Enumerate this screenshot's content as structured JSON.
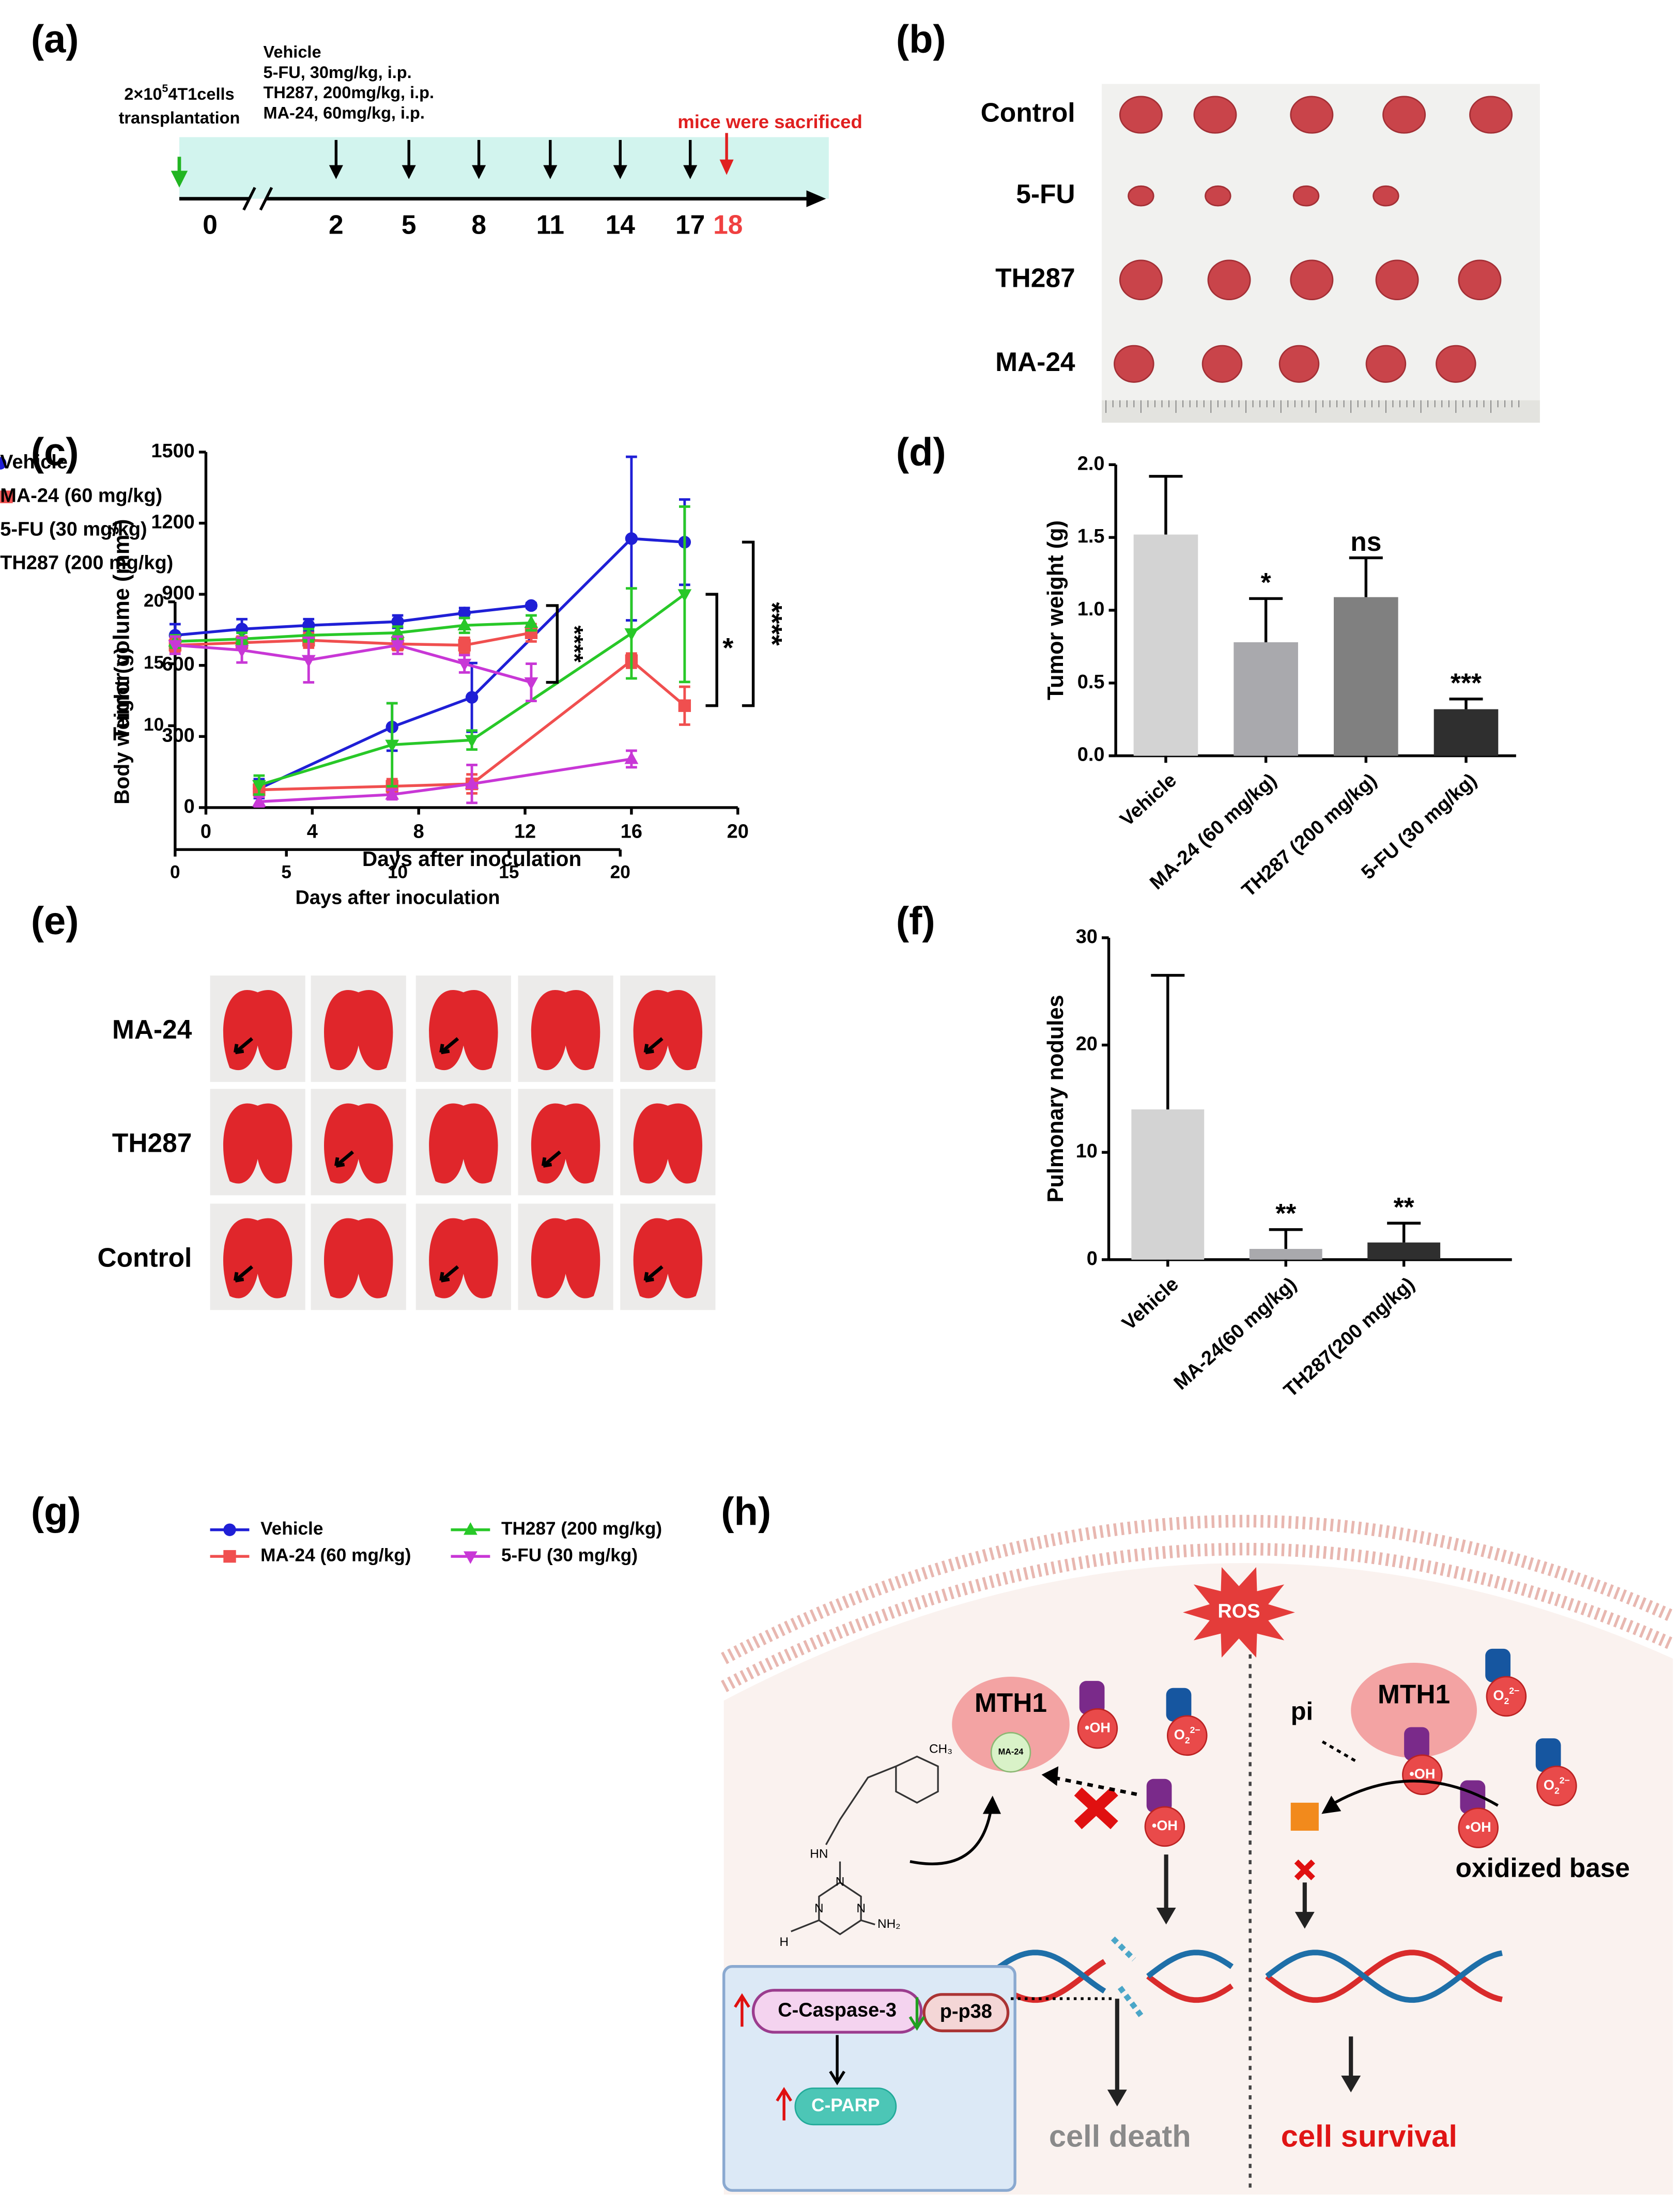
{
  "panel_labels": [
    "(a)",
    "(b)",
    "(c)",
    "(d)",
    "(e)",
    "(f)",
    "(g)",
    "(h)"
  ],
  "timeline": {
    "cells_prefix": "2×10",
    "cells_sup": "5",
    "cells_suffix": "4T1cells",
    "cells_line2": "transplantation",
    "treatments": [
      "Vehicle",
      "5-FU, 30mg/kg, i.p.",
      "TH287, 200mg/kg, i.p.",
      "MA-24, 60mg/kg, i.p."
    ],
    "sacrifice": "mice were sacrificed",
    "days": [
      0,
      2,
      5,
      8,
      11,
      14,
      17
    ],
    "end_day": 18
  },
  "photo_b": {
    "groups": [
      "Control",
      "5-FU",
      "TH287",
      "MA-24"
    ]
  },
  "photo_e": {
    "groups": [
      "MA-24",
      "TH287",
      "Control"
    ]
  },
  "diagram": {
    "ros": "ROS",
    "mth1": "MTH1",
    "inhibitor": "MA-24",
    "hydroxyl": "•OH",
    "superoxide": {
      "base": "O",
      "sub": "2",
      "sup": "2−"
    },
    "pi": "pi",
    "oxidized_base": "oxidized base",
    "caspase": "C-Caspase-3",
    "p38": "p-p38",
    "parp": "C-PARP",
    "death": "cell death",
    "survival": "cell survival",
    "chem_labels": [
      "CH₃",
      "HN",
      "N",
      "N",
      "N",
      "H",
      "NH₂"
    ]
  },
  "chart_data": [
    {
      "type": "line",
      "y_label": {
        "text": "Tumor volume (mm",
        "sup": "3",
        "end": ")"
      },
      "x_label": "Days after inoculation",
      "xlim": [
        0,
        20
      ],
      "xticks": [
        0,
        4,
        8,
        12,
        16,
        20
      ],
      "ylim": [
        0,
        1500
      ],
      "yticks": [
        0,
        300,
        600,
        900,
        1200,
        1500
      ],
      "series": [
        {
          "name": "Vehicle",
          "color": "#1f1fd6",
          "marker": "circle",
          "x": [
            2,
            7,
            10,
            16,
            18
          ],
          "values": [
            80,
            340,
            465,
            1135,
            1120
          ],
          "errors": [
            40,
            100,
            145,
            345,
            180
          ]
        },
        {
          "name": "MA-24 (60 mg/kg)",
          "color": "#f04f4f",
          "marker": "square",
          "x": [
            2,
            7,
            10,
            16,
            18
          ],
          "values": [
            75,
            90,
            100,
            620,
            430
          ],
          "errors": [
            30,
            30,
            40,
            30,
            80
          ]
        },
        {
          "name": "5-FU (30 mg/kg)",
          "color": "#c837d6",
          "marker": "triangle",
          "x": [
            2,
            7,
            10,
            16
          ],
          "values": [
            25,
            55,
            100,
            205
          ],
          "errors": [
            20,
            20,
            80,
            35
          ]
        },
        {
          "name": "TH287 (200 mg/kg)",
          "color": "#28c828",
          "marker": "triangle-down",
          "x": [
            2,
            7,
            10,
            16,
            18
          ],
          "values": [
            95,
            265,
            285,
            735,
            900
          ],
          "errors": [
            40,
            175,
            40,
            190,
            370
          ]
        }
      ],
      "annotations": [
        "*",
        "****"
      ]
    },
    {
      "type": "bar",
      "y_label": {
        "text": "Tumor weight (g)"
      },
      "categories": [
        "Vehicle",
        "MA-24 (60 mg/kg)",
        "TH287 (200 mg/kg)",
        "5-FU (30 mg/kg)"
      ],
      "values": [
        1.52,
        0.78,
        1.09,
        0.32
      ],
      "errors": [
        0.4,
        0.3,
        0.27,
        0.07
      ],
      "colors": [
        "#d3d3d3",
        "#a9a9ad",
        "#808080",
        "#2f2f2f"
      ],
      "value_annotations": [
        null,
        "*",
        "ns",
        "***"
      ],
      "ylim": [
        0,
        2
      ],
      "yticks": [
        {
          "value": 0,
          "label": "0.0"
        },
        0.5,
        {
          "value": 1,
          "label": "1.0"
        },
        1.5,
        {
          "value": 2,
          "label": "2.0"
        }
      ]
    },
    {
      "type": "bar",
      "y_label": {
        "text": "Pulmonary nodules"
      },
      "categories": [
        "Vehicle",
        "MA-24(60 mg/kg)",
        "TH287(200 mg/kg)"
      ],
      "values": [
        14,
        1,
        1.6
      ],
      "errors": [
        12.5,
        1.8,
        1.8
      ],
      "colors": [
        "#d3d3d3",
        "#a9a9ad",
        "#2f2f2f"
      ],
      "value_annotations": [
        null,
        "**",
        "**"
      ],
      "ylim": [
        0,
        30
      ],
      "yticks": [
        0,
        10,
        20,
        30
      ]
    },
    {
      "type": "line",
      "y_label": {
        "text": "Body weight (g)"
      },
      "x_label": "Days after inoculation",
      "xlim": [
        0,
        20
      ],
      "xticks": [
        0,
        5,
        10,
        15,
        20
      ],
      "ylim": [
        0,
        20
      ],
      "yticks": [
        10,
        15,
        20
      ],
      "series": [
        {
          "name": "Vehicle",
          "color": "#1f1fd6",
          "marker": "circle",
          "x": [
            0,
            3,
            6,
            10,
            13,
            16
          ],
          "values": [
            17.3,
            17.8,
            18.1,
            18.4,
            19.1,
            19.7
          ],
          "errors": [
            0.9,
            0.8,
            0.5,
            0.5,
            0.4,
            0.2
          ]
        },
        {
          "name": "MA-24 (60 mg/kg)",
          "color": "#f04f4f",
          "marker": "square",
          "x": [
            0,
            3,
            6,
            10,
            13,
            16
          ],
          "values": [
            16.5,
            16.7,
            16.9,
            16.6,
            16.5,
            17.5
          ],
          "errors": [
            0.5,
            0.5,
            0.6,
            0.5,
            0.6,
            0.7
          ]
        },
        {
          "name": "TH287 (200 mg/kg)",
          "color": "#28c828",
          "marker": "triangle",
          "x": [
            0,
            3,
            6,
            10,
            13,
            16
          ],
          "values": [
            16.8,
            17.0,
            17.3,
            17.5,
            18.1,
            18.3
          ],
          "errors": [
            0.5,
            0.5,
            0.5,
            0.5,
            0.6,
            0.6
          ]
        },
        {
          "name": "5-FU (30 mg/kg)",
          "color": "#c837d6",
          "marker": "triangle-down",
          "x": [
            0,
            3,
            6,
            10,
            13,
            16
          ],
          "values": [
            16.5,
            16.1,
            15.3,
            16.5,
            15,
            13.5
          ],
          "errors": [
            0.7,
            1.0,
            1.8,
            0.7,
            0.7,
            1.5
          ]
        }
      ],
      "annotations": [
        "****"
      ]
    }
  ]
}
